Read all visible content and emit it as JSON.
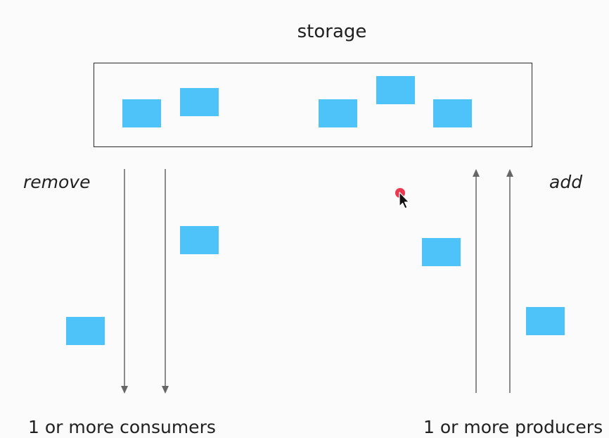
{
  "diagram": {
    "title": "storage",
    "remove_label": "remove",
    "add_label": "add",
    "consumers_label": "1 or more consumers",
    "producers_label": "1 or more producers"
  },
  "colors": {
    "item": "#4ec3fa",
    "arrow": "#666666",
    "border": "#2a2a2a",
    "cursor_highlight": "#e8243c"
  },
  "icons": {
    "pointer": "mouse-pointer-icon"
  }
}
